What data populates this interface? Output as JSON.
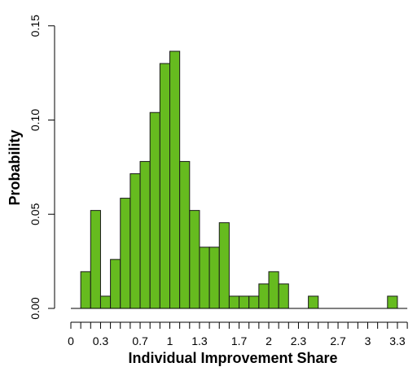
{
  "chart_data": {
    "type": "bar",
    "xlabel": "Individual Improvement Share",
    "ylabel": "Probability",
    "bar_color": "#66bb1f",
    "bar_stroke": "#1a1a1a",
    "bin_width": 0.1,
    "bins_start": [
      0.1,
      0.2,
      0.3,
      0.4,
      0.5,
      0.6,
      0.7,
      0.8,
      0.9,
      1.0,
      1.1,
      1.2,
      1.3,
      1.4,
      1.5,
      1.6,
      1.7,
      1.8,
      1.9,
      2.0,
      2.1,
      2.2,
      2.3,
      2.4,
      2.5,
      2.6,
      2.7,
      2.8,
      2.9,
      3.0,
      3.1,
      3.2
    ],
    "values": [
      0.0195,
      0.052,
      0.0065,
      0.026,
      0.0585,
      0.0715,
      0.078,
      0.104,
      0.13,
      0.1365,
      0.078,
      0.052,
      0.0325,
      0.0325,
      0.0455,
      0.0065,
      0.0065,
      0.0065,
      0.013,
      0.0195,
      0.013,
      0.0,
      0.0,
      0.0065,
      0.0,
      0.0,
      0.0,
      0.0,
      0.0,
      0.0,
      0.0,
      0.0065
    ],
    "xlim": [
      0,
      3.3
    ],
    "ylim": [
      0,
      0.15
    ],
    "x_ticks": [
      0,
      0.1,
      0.2,
      0.3,
      0.4,
      0.5,
      0.6,
      0.7,
      0.8,
      0.9,
      1.0,
      1.1,
      1.2,
      1.3,
      1.4,
      1.5,
      1.6,
      1.7,
      1.8,
      1.9,
      2.0,
      2.1,
      2.2,
      2.3,
      2.4,
      2.5,
      2.6,
      2.7,
      2.8,
      2.9,
      3.0,
      3.1,
      3.2,
      3.3,
      3.4
    ],
    "x_tick_labels": [
      {
        "value": 0,
        "label": "0"
      },
      {
        "value": 0.3,
        "label": "0.3"
      },
      {
        "value": 0.7,
        "label": "0.7"
      },
      {
        "value": 1.0,
        "label": "1"
      },
      {
        "value": 1.3,
        "label": "1.3"
      },
      {
        "value": 1.7,
        "label": "1.7"
      },
      {
        "value": 2.0,
        "label": "2"
      },
      {
        "value": 2.3,
        "label": "2.3"
      },
      {
        "value": 2.7,
        "label": "2.7"
      },
      {
        "value": 3.0,
        "label": "3"
      },
      {
        "value": 3.3,
        "label": "3.3"
      }
    ],
    "y_ticks": [
      {
        "value": 0.0,
        "label": "0.00"
      },
      {
        "value": 0.05,
        "label": "0.05"
      },
      {
        "value": 0.1,
        "label": "0.10"
      },
      {
        "value": 0.15,
        "label": "0.15"
      }
    ],
    "grid": false,
    "legend": "none"
  }
}
